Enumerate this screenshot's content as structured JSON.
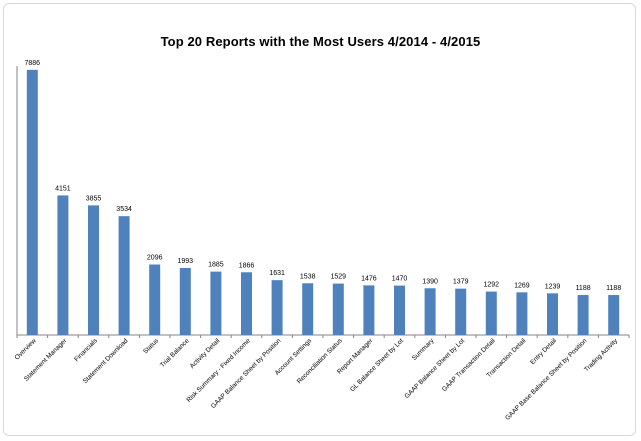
{
  "chart_data": {
    "type": "bar",
    "title": "Top 20 Reports with the Most Users  4/2014 - 4/2015",
    "xlabel": "",
    "ylabel": "",
    "ylim": [
      0,
      8000
    ],
    "grid": false,
    "legend": "none",
    "bar_color": "#4f81bd",
    "categories": [
      "Overview",
      "Statement Manager",
      "Financials",
      "Statement Download",
      "Status",
      "Trial Balance",
      "Activity Detail",
      "Risk Summary - Fixed Income",
      "GAAP Balance Sheet by Position",
      "Account Settings",
      "Reconciliation Status",
      "Report Manager",
      "GL Balance Sheet by Lot",
      "Summary",
      "GAAP Balance Sheet by Lot",
      "GAAP Transaction Detail",
      "Transaction Detail",
      "Entry Detail",
      "GAAP Base Balance Sheet by Position",
      "Trading Activity"
    ],
    "values": [
      7886,
      4151,
      3855,
      3534,
      2096,
      1993,
      1885,
      1866,
      1631,
      1538,
      1529,
      1476,
      1470,
      1390,
      1379,
      1292,
      1269,
      1239,
      1188,
      1188
    ]
  }
}
